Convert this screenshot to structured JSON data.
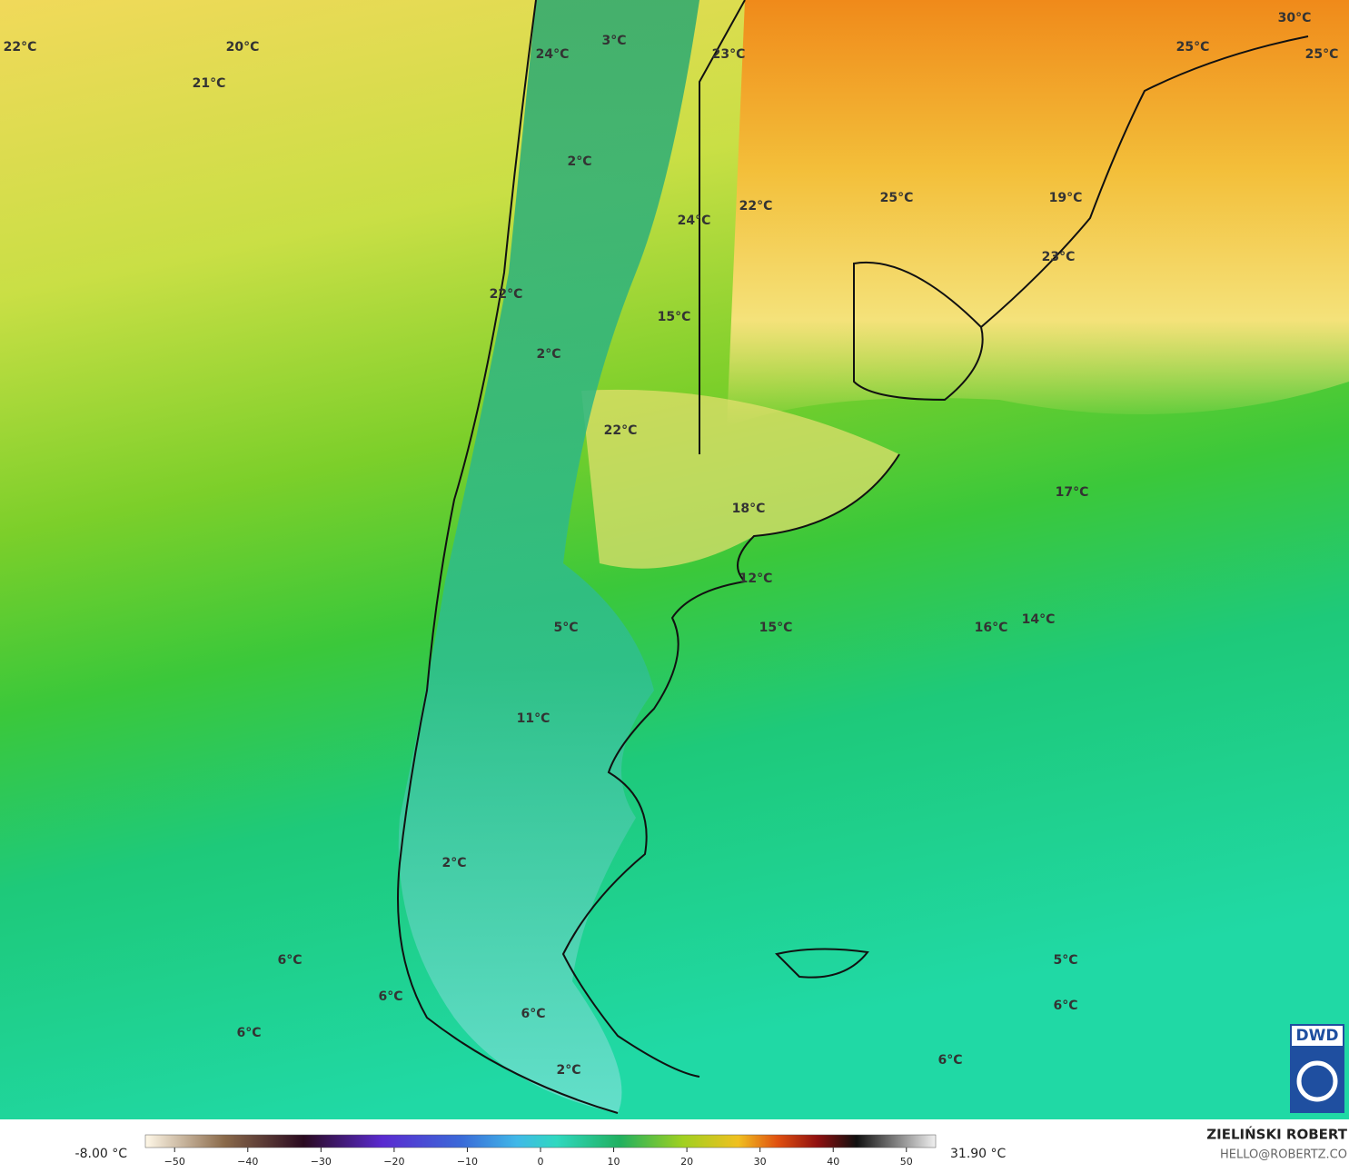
{
  "map": {
    "labels": [
      "22°C",
      "20°C",
      "21°C",
      "3°C",
      "24°C",
      "23°C",
      "30°C",
      "25°C",
      "25°C",
      "2°C",
      "25°C",
      "19°C",
      "24°C",
      "22°C",
      "23°C",
      "22°C",
      "15°C",
      "2°C",
      "22°C",
      "17°C",
      "18°C",
      "12°C",
      "5°C",
      "15°C",
      "16°C",
      "14°C",
      "11°C",
      "2°C",
      "6°C",
      "5°C",
      "6°C",
      "6°C",
      "6°C",
      "6°C",
      "6°C",
      "2°C"
    ],
    "logo": "DWD"
  },
  "colorbar": {
    "min_label": "-8.00 °C",
    "max_label": "31.90 °C",
    "lim": [
      -54,
      54
    ],
    "ticks": [
      {
        "value": -50,
        "label": "−50"
      },
      {
        "value": -40,
        "label": "−40"
      },
      {
        "value": -30,
        "label": "−30"
      },
      {
        "value": -20,
        "label": "−20"
      },
      {
        "value": -10,
        "label": "−10"
      },
      0,
      10,
      20,
      30,
      40,
      50
    ]
  },
  "credit": {
    "author": "ZIELIŃSKI ROBERT",
    "email": "HELLO@ROBERTZ.CO"
  }
}
